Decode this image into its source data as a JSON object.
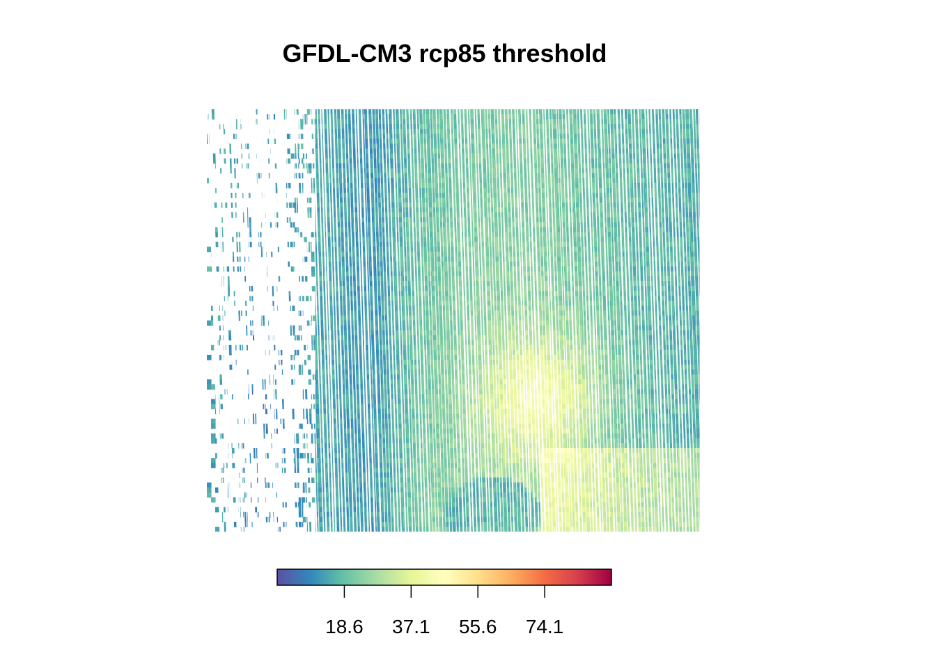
{
  "chart_data": {
    "type": "heatmap",
    "title": "GFDL-CM3 rcp85 threshold",
    "xlabel": "",
    "ylabel": "",
    "grid": false,
    "legend": {
      "placement": "bottom",
      "range": [
        0,
        92.6
      ],
      "ticks": [
        18.6,
        37.1,
        55.6,
        74.1
      ],
      "tick_labels": [
        "18.6",
        "37.1",
        "55.6",
        "74.1"
      ],
      "palette": [
        "#5E4FA2",
        "#3288BD",
        "#66C2A5",
        "#ABDDA4",
        "#E6F598",
        "#FFFFBF",
        "#FEE08B",
        "#FDAE61",
        "#F46D43",
        "#D53E4F",
        "#9E0142"
      ]
    }
  }
}
